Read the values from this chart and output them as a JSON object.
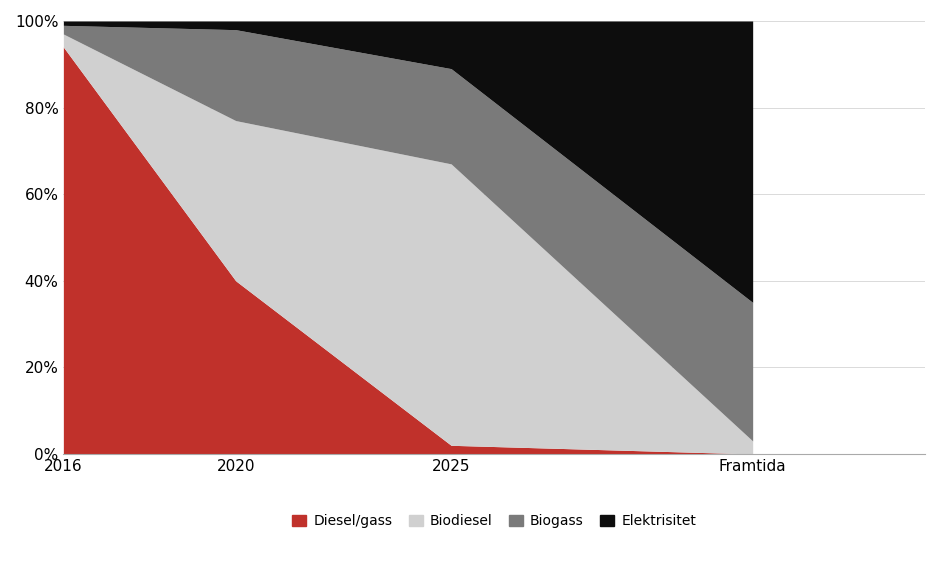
{
  "x_labels": [
    "2016",
    "2020",
    "2025",
    "Framtida"
  ],
  "x_positions": [
    2016,
    2020,
    2025,
    2032
  ],
  "series": {
    "Diesel/gass": [
      0.94,
      0.4,
      0.02,
      0.0
    ],
    "Biodiesel": [
      0.03,
      0.37,
      0.65,
      0.03
    ],
    "Biogass": [
      0.02,
      0.21,
      0.22,
      0.32
    ],
    "Elektrisitet": [
      0.01,
      0.02,
      0.11,
      0.65
    ]
  },
  "colors": {
    "Diesel/gass": "#c0312b",
    "Biodiesel": "#d0d0d0",
    "Biogass": "#7a7a7a",
    "Elektrisitet": "#0d0d0d"
  },
  "ylabel_ticks": [
    0,
    0.2,
    0.4,
    0.6,
    0.8,
    1.0
  ],
  "ylabel_labels": [
    "0%",
    "20%",
    "40%",
    "60%",
    "80%",
    "100%"
  ],
  "background_color": "#ffffff",
  "legend_order": [
    "Diesel/gass",
    "Biodiesel",
    "Biogass",
    "Elektrisitet"
  ],
  "xlim": [
    2016,
    2036
  ],
  "xtick_positions": [
    2016,
    2020,
    2025,
    2032
  ],
  "xtick_labels": [
    "2016",
    "2020",
    "2025",
    "Framtida"
  ]
}
